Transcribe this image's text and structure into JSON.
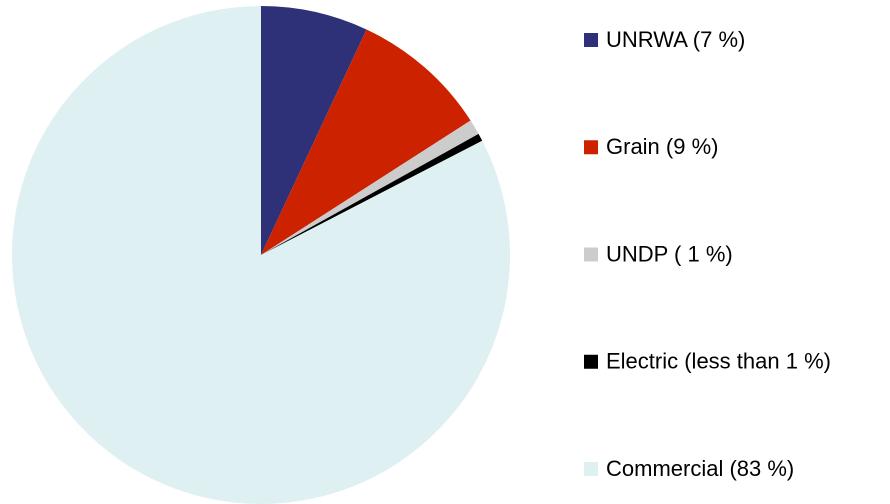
{
  "chart_data": {
    "type": "pie",
    "categories": [
      "UNRWA (7 %)",
      "Grain (9 %)",
      "UNDP ( 1 %)",
      "Electric (less than 1 %)",
      "Commercial (83 %)"
    ],
    "values": [
      7,
      9,
      1,
      0.5,
      83
    ],
    "colors": [
      "#2e3178",
      "#cc2200",
      "#cccccc",
      "#000000",
      "#dff0f2"
    ],
    "legend": "right"
  }
}
